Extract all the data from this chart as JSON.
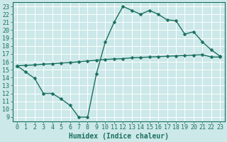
{
  "line1_x": [
    0,
    1,
    2,
    3,
    4,
    5,
    6,
    7,
    8,
    9,
    10,
    11,
    12,
    13,
    14,
    15,
    16,
    17,
    18,
    19,
    20,
    21,
    22,
    23
  ],
  "line1_y": [
    15.5,
    14.7,
    13.9,
    12.0,
    12.0,
    11.3,
    10.5,
    9.0,
    9.0,
    14.5,
    18.5,
    21.0,
    23.0,
    22.5,
    22.0,
    22.5,
    22.0,
    21.3,
    21.2,
    19.5,
    19.8,
    18.5,
    17.5,
    16.7
  ],
  "line2_x": [
    0,
    1,
    2,
    3,
    4,
    5,
    6,
    7,
    8,
    9,
    10,
    11,
    12,
    13,
    14,
    15,
    16,
    17,
    18,
    19,
    20,
    21,
    22,
    23
  ],
  "line2_y": [
    15.5,
    15.55,
    15.6,
    15.7,
    15.75,
    15.85,
    15.9,
    16.0,
    16.1,
    16.2,
    16.3,
    16.35,
    16.4,
    16.5,
    16.55,
    16.6,
    16.65,
    16.7,
    16.75,
    16.8,
    16.85,
    16.9,
    16.6,
    16.6
  ],
  "line_color": "#1a7060",
  "bg_color": "#cce8e8",
  "grid_color": "#b0d8d8",
  "xlabel": "Humidex (Indice chaleur)",
  "xlim": [
    -0.5,
    23.5
  ],
  "ylim": [
    8.5,
    23.5
  ],
  "xticks": [
    0,
    1,
    2,
    3,
    4,
    5,
    6,
    7,
    8,
    9,
    10,
    11,
    12,
    13,
    14,
    15,
    16,
    17,
    18,
    19,
    20,
    21,
    22,
    23
  ],
  "yticks": [
    9,
    10,
    11,
    12,
    13,
    14,
    15,
    16,
    17,
    18,
    19,
    20,
    21,
    22,
    23
  ],
  "marker": "D",
  "markersize": 2.5,
  "linewidth": 1.0,
  "xlabel_fontsize": 7,
  "tick_fontsize": 6
}
